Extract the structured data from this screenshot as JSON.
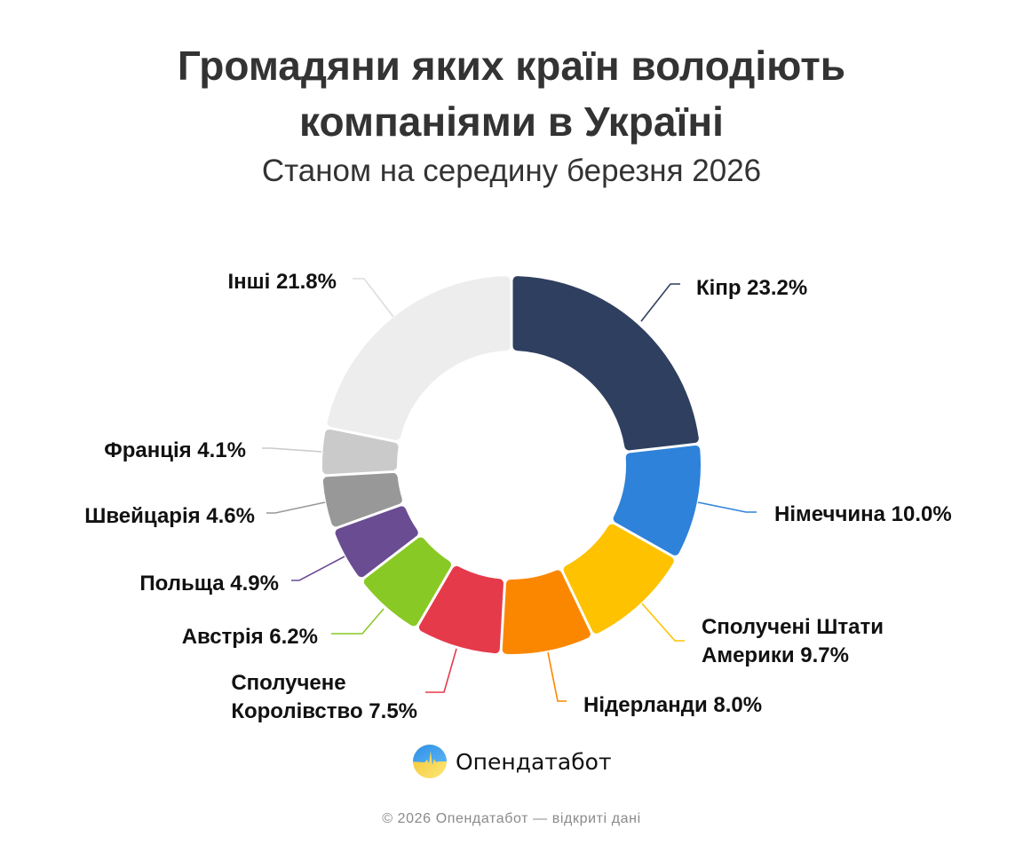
{
  "header": {
    "title_line1": "Громадяни яких країн володіють",
    "title_line2": "компаніями в Україні",
    "subtitle": "Станом на середину березня 2026"
  },
  "chart_data": {
    "type": "pie",
    "variant": "donut",
    "title": "Громадяни яких країн володіють компаніями в Україні",
    "subtitle": "Станом на середину березня 2026",
    "unit": "%",
    "start_angle_deg": 0,
    "direction": "clockwise",
    "categories": [
      "Кіпр",
      "Німеччина",
      "Сполучені Штати Америки",
      "Нідерланди",
      "Сполучене Королівство",
      "Австрія",
      "Польща",
      "Швейцарія",
      "Франція",
      "Інші"
    ],
    "values": [
      23.2,
      10.0,
      9.7,
      8.0,
      7.5,
      6.2,
      4.9,
      4.6,
      4.1,
      21.8
    ],
    "colors": [
      "#2f3f5f",
      "#2e82d9",
      "#fec200",
      "#fb8700",
      "#e53a4a",
      "#89c925",
      "#6a4c92",
      "#989898",
      "#cacaca",
      "#ededed"
    ],
    "legend": "none (direct labels with leader lines)"
  },
  "labels": [
    {
      "lines": [
        "Кіпр 23.2%"
      ]
    },
    {
      "lines": [
        "Німеччина 10.0%"
      ]
    },
    {
      "lines": [
        "Сполучені Штати",
        "Америки 9.7%"
      ]
    },
    {
      "lines": [
        "Нідерланди 8.0%"
      ]
    },
    {
      "lines": [
        "Сполучене",
        "Королівство 7.5%"
      ]
    },
    {
      "lines": [
        "Австрія 6.2%"
      ]
    },
    {
      "lines": [
        "Польща 4.9%"
      ]
    },
    {
      "lines": [
        "Швейцарія 4.6%"
      ]
    },
    {
      "lines": [
        "Франція 4.1%"
      ]
    },
    {
      "lines": [
        "Інші 21.8%"
      ]
    }
  ],
  "brand": {
    "name": "Опендатабот",
    "logo_icon": "opendatabot-logo-icon"
  },
  "footer": {
    "text": "© 2026 Опендатабот — відкриті дані"
  }
}
